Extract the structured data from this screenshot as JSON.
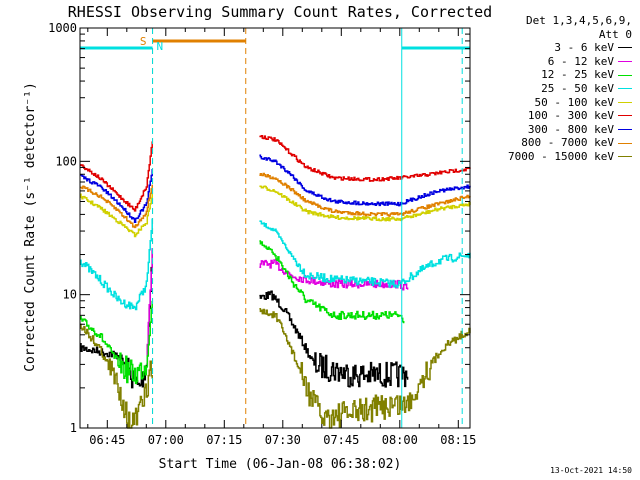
{
  "chart_data": {
    "type": "line",
    "title": "RHESSI Observing Summary Count Rates, Corrected",
    "xlabel": "Start Time (06-Jan-08 06:38:02)",
    "ylabel": "Corrected Count Rate (s⁻¹ detector⁻¹)",
    "yscale": "log",
    "ylim": [
      1,
      1000
    ],
    "xlim_minutes": [
      0,
      100
    ],
    "x_ticks": [
      {
        "label": "06:45",
        "minute": 7
      },
      {
        "label": "07:00",
        "minute": 22
      },
      {
        "label": "07:15",
        "minute": 37
      },
      {
        "label": "07:30",
        "minute": 52
      },
      {
        "label": "07:45",
        "minute": 67
      },
      {
        "label": "08:00",
        "minute": 82
      },
      {
        "label": "08:15",
        "minute": 97
      }
    ],
    "y_ticks": [
      {
        "label": "1",
        "value": 1
      },
      {
        "label": "10",
        "value": 10
      },
      {
        "label": "100",
        "value": 100
      },
      {
        "label": "1000",
        "value": 1000
      }
    ],
    "legend_header": [
      "Det 1,3,4,5,6,9,",
      "Att 0"
    ],
    "legend_position": "right",
    "grid": false,
    "segments": [
      [
        0,
        18.6
      ],
      [
        45.5,
        100
      ]
    ],
    "series": [
      {
        "name": "3 - 6 keV",
        "color": "#000000",
        "segment_values": [
          [
            [
              0,
              4
            ],
            [
              10,
              3.5
            ],
            [
              15,
              2
            ],
            [
              17,
              3
            ],
            [
              18.6,
              25
            ]
          ],
          [
            [
              46,
              9.5
            ],
            [
              49,
              10
            ],
            [
              52,
              8
            ],
            [
              56,
              5
            ],
            [
              60,
              3
            ],
            [
              70,
              2.5
            ],
            [
              82,
              2.5
            ],
            [
              84,
              2.6
            ]
          ]
        ]
      },
      {
        "name": "6 - 12 keV",
        "color": "#e000e0",
        "segment_values": [
          [
            [
              17,
              3
            ],
            [
              18.6,
              25
            ]
          ],
          [
            [
              46,
              17
            ],
            [
              50,
              17
            ],
            [
              54,
              14
            ],
            [
              58,
              13
            ],
            [
              65,
              12
            ],
            [
              75,
              12
            ],
            [
              82,
              12
            ],
            [
              84,
              11
            ]
          ]
        ]
      },
      {
        "name": "12 - 25 keV",
        "color": "#00e000",
        "segment_values": [
          [
            [
              0,
              6.5
            ],
            [
              5,
              5
            ],
            [
              10,
              3
            ],
            [
              14,
              2.5
            ],
            [
              17,
              3
            ],
            [
              18.6,
              10
            ]
          ],
          [
            [
              46,
              25
            ],
            [
              50,
              20
            ],
            [
              54,
              13
            ],
            [
              58,
              9
            ],
            [
              65,
              7
            ],
            [
              75,
              7
            ],
            [
              82,
              7
            ],
            [
              83,
              6.5
            ]
          ]
        ]
      },
      {
        "name": "25 - 50 keV",
        "color": "#00e0e0",
        "segment_values": [
          [
            [
              0,
              18
            ],
            [
              5,
              13
            ],
            [
              10,
              9
            ],
            [
              14,
              8
            ],
            [
              17,
              12
            ],
            [
              18.6,
              40
            ]
          ],
          [
            [
              46,
              35
            ],
            [
              50,
              30
            ],
            [
              54,
              20
            ],
            [
              58,
              14
            ],
            [
              65,
              13
            ],
            [
              75,
              12.5
            ],
            [
              82,
              12
            ],
            [
              87,
              15
            ],
            [
              92,
              18
            ],
            [
              100,
              20
            ]
          ]
        ]
      },
      {
        "name": "50 - 100 keV",
        "color": "#d0d000",
        "segment_values": [
          [
            [
              0,
              55
            ],
            [
              5,
              45
            ],
            [
              10,
              35
            ],
            [
              14,
              28
            ],
            [
              17,
              35
            ],
            [
              18.6,
              60
            ]
          ],
          [
            [
              46,
              65
            ],
            [
              50,
              60
            ],
            [
              54,
              50
            ],
            [
              58,
              42
            ],
            [
              65,
              38
            ],
            [
              75,
              37
            ],
            [
              82,
              37
            ],
            [
              87,
              40
            ],
            [
              92,
              44
            ],
            [
              100,
              48
            ]
          ]
        ]
      },
      {
        "name": "100 - 300 keV",
        "color": "#e00000",
        "segment_values": [
          [
            [
              0,
              95
            ],
            [
              5,
              75
            ],
            [
              10,
              55
            ],
            [
              14,
              43
            ],
            [
              17,
              65
            ],
            [
              18.6,
              150
            ]
          ],
          [
            [
              46,
              155
            ],
            [
              50,
              145
            ],
            [
              54,
              115
            ],
            [
              58,
              90
            ],
            [
              65,
              75
            ],
            [
              75,
              73
            ],
            [
              82,
              75
            ],
            [
              87,
              78
            ],
            [
              92,
              82
            ],
            [
              100,
              88
            ]
          ]
        ]
      },
      {
        "name": "300 - 800 keV",
        "color": "#0000e0",
        "segment_values": [
          [
            [
              0,
              78
            ],
            [
              5,
              65
            ],
            [
              10,
              48
            ],
            [
              14,
              36
            ],
            [
              17,
              48
            ],
            [
              18.6,
              90
            ]
          ],
          [
            [
              46,
              108
            ],
            [
              50,
              100
            ],
            [
              54,
              80
            ],
            [
              58,
              60
            ],
            [
              65,
              50
            ],
            [
              75,
              48
            ],
            [
              82,
              48
            ],
            [
              87,
              54
            ],
            [
              92,
              60
            ],
            [
              100,
              65
            ]
          ]
        ]
      },
      {
        "name": "800 - 7000 keV",
        "color": "#e08000",
        "segment_values": [
          [
            [
              0,
              65
            ],
            [
              5,
              55
            ],
            [
              10,
              42
            ],
            [
              14,
              32
            ],
            [
              17,
              42
            ],
            [
              18.6,
              70
            ]
          ],
          [
            [
              46,
              80
            ],
            [
              50,
              75
            ],
            [
              54,
              62
            ],
            [
              58,
              50
            ],
            [
              65,
              42
            ],
            [
              75,
              40
            ],
            [
              82,
              40
            ],
            [
              87,
              44
            ],
            [
              92,
              48
            ],
            [
              100,
              55
            ]
          ]
        ]
      },
      {
        "name": "7000 - 15000 keV",
        "color": "#808000",
        "segment_values": [
          [
            [
              0,
              6
            ],
            [
              5,
              4
            ],
            [
              10,
              2
            ],
            [
              13,
              1
            ],
            [
              16,
              1.5
            ],
            [
              18.6,
              3
            ]
          ],
          [
            [
              46,
              7.5
            ],
            [
              50,
              7
            ],
            [
              54,
              4
            ],
            [
              58,
              2
            ],
            [
              62,
              1.2
            ],
            [
              70,
              1.3
            ],
            [
              80,
              1.5
            ],
            [
              84,
              1.5
            ],
            [
              88,
              2.5
            ],
            [
              93,
              4
            ],
            [
              100,
              5.5
            ]
          ]
        ]
      }
    ],
    "annotations": {
      "flag_labels": [
        "S",
        "N"
      ],
      "saa_flag_color": "#e08000",
      "night_flag_color": "#00e0e0",
      "saa_flag_minutes": [
        [
          18.6,
          42.5
        ]
      ],
      "night_flag_minutes": [
        [
          0,
          18.6
        ],
        [
          82.5,
          100
        ]
      ],
      "dashed_minutes": [
        {
          "minute": 18.6,
          "color": "#e08000"
        },
        {
          "minute": 18.6,
          "color": "#00e0e0"
        },
        {
          "minute": 42.5,
          "color": "#e08000"
        },
        {
          "minute": 98,
          "color": "#00e0e0"
        }
      ],
      "solid_minutes": [
        {
          "minute": 82.5,
          "color": "#00e0e0"
        }
      ]
    }
  },
  "timestamp": "13-Oct-2021 14:50"
}
